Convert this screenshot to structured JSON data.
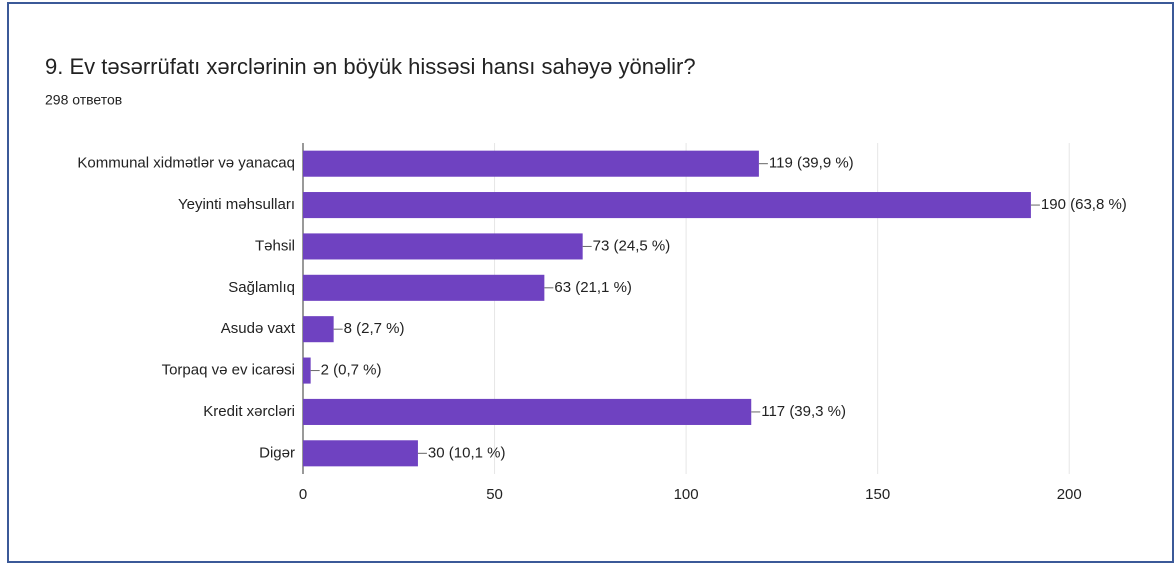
{
  "chart_data": {
    "type": "bar",
    "orientation": "horizontal",
    "title": "9. Ev təsərrüfatı xərclərinin ən böyük hissəsi hansı sahəyə yönəlir?",
    "subtitle": "298 ответов",
    "categories": [
      "Kommunal xidmətlər və yanacaq",
      "Yeyinti məhsulları",
      "Təhsil",
      "Sağlamlıq",
      "Asudə vaxt",
      "Torpaq və ev icarəsi",
      "Kredit xərcləri",
      "Digər"
    ],
    "values": [
      119,
      190,
      73,
      63,
      8,
      2,
      117,
      30
    ],
    "value_labels": [
      "119 (39,9 %)",
      "190 (63,8 %)",
      "73 (24,5 %)",
      "63 (21,1 %)",
      "8 (2,7 %)",
      "2 (0,7 %)",
      "117 (39,3 %)",
      "30 (10,1 %)"
    ],
    "color": "#6f42c1",
    "xlim": [
      0,
      225
    ],
    "xticks": [
      0,
      50,
      100,
      150,
      200
    ],
    "grid": true
  }
}
